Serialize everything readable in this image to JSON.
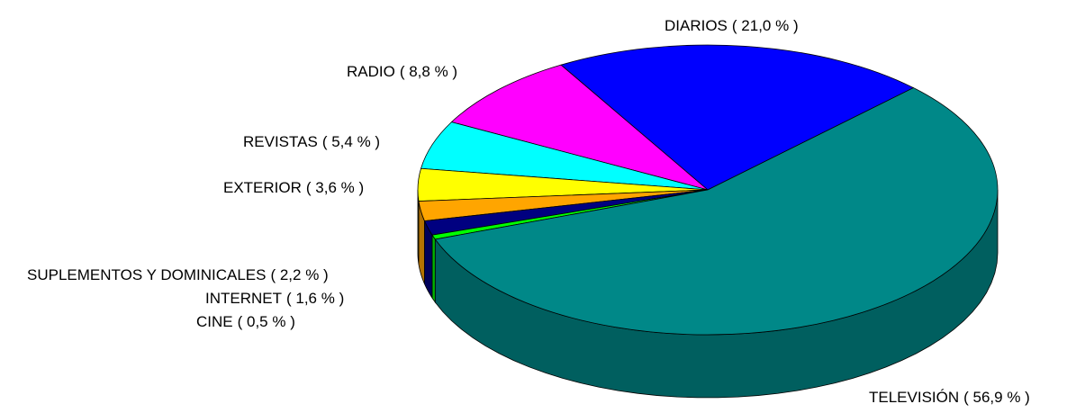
{
  "chart_data": {
    "type": "pie",
    "categories": [
      "DIARIOS",
      "RADIO",
      "REVISTAS",
      "EXTERIOR",
      "SUPLEMENTOS Y DOMINICALES",
      "INTERNET",
      "CINE",
      "TELEVISIÓN"
    ],
    "values": [
      21.0,
      8.8,
      5.4,
      3.6,
      2.2,
      1.6,
      0.5,
      56.9
    ],
    "value_labels": [
      "( 21,0 % )",
      "( 8,8 % )",
      "( 5,4 % )",
      "( 3,6 % )",
      "( 2,2 % )",
      "( 1,6 % )",
      "( 0,5 % )",
      "( 56,9 % )"
    ],
    "colors": [
      "#0000ff",
      "#ff00ff",
      "#00ffff",
      "#ffff00",
      "#ffa500",
      "#000080",
      "#00ff00",
      "#008888"
    ]
  }
}
